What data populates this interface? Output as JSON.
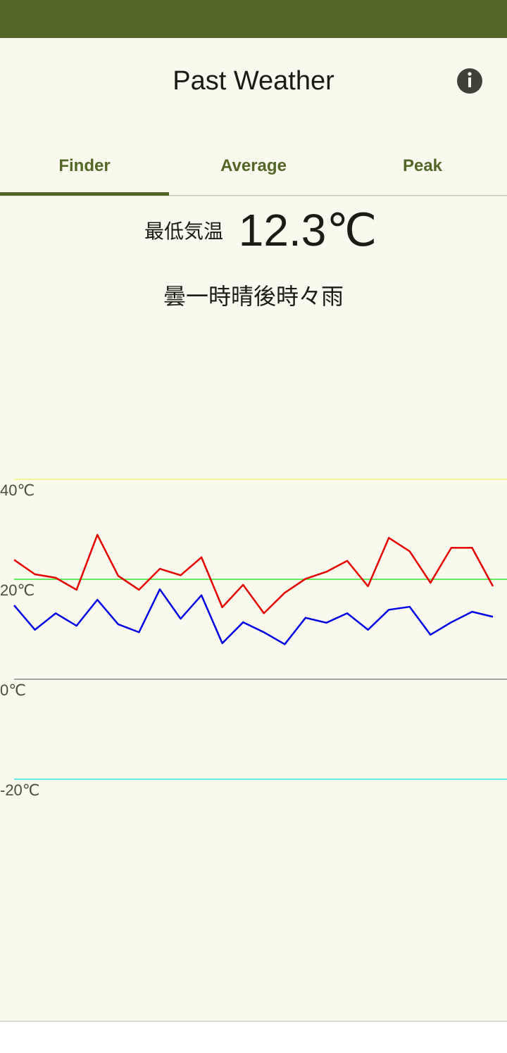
{
  "app_bar": {
    "title": "Past Weather"
  },
  "tabs": [
    "Finder",
    "Average",
    "Peak"
  ],
  "reading": {
    "label": "最低気温",
    "value": "12.3℃"
  },
  "weather": "曇一時晴後時々雨",
  "chart": {
    "type": "line",
    "ylim": [
      -20,
      40
    ],
    "yticks": [
      {
        "value": 40,
        "label": "40℃"
      },
      {
        "value": 20,
        "label": "20℃"
      },
      {
        "value": 0,
        "label": "0℃"
      },
      {
        "value": -20,
        "label": "-20℃"
      }
    ],
    "grid_colors": [
      "#f5f57a",
      "#33e633",
      "#888888",
      "#33e6e6"
    ],
    "series": [
      {
        "color": "#e60000",
        "values": [
          23.9,
          21.0,
          20.3,
          17.9,
          28.9,
          20.7,
          17.9,
          22.1,
          20.8,
          24.4,
          14.4,
          18.9,
          13.2,
          17.3,
          20.1,
          21.5,
          23.7,
          18.6,
          28.3,
          25.6,
          19.3,
          26.3,
          26.3,
          18.6
        ]
      },
      {
        "color": "#0000e6",
        "values": [
          14.8,
          9.9,
          13.2,
          10.7,
          15.9,
          11.0,
          9.4,
          18.0,
          12.1,
          16.8,
          7.2,
          11.4,
          9.4,
          7.0,
          12.3,
          11.3,
          13.2,
          9.9,
          13.9,
          14.5,
          8.9,
          11.4,
          13.5,
          12.5
        ]
      }
    ]
  }
}
